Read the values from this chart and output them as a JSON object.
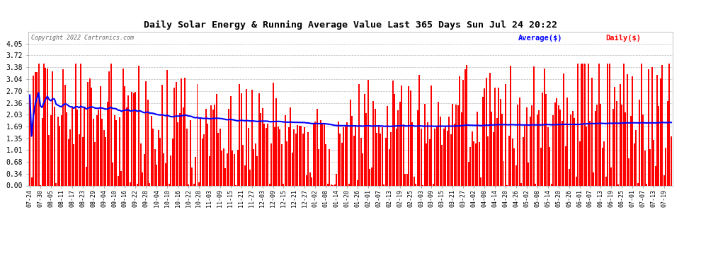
{
  "title": "Daily Solar Energy & Running Average Value Last 365 Days Sun Jul 24 20:22",
  "copyright": "Copyright 2022 Cartronics.com",
  "legend_avg": "Average($)",
  "legend_daily": "Daily($)",
  "ylim": [
    0.0,
    4.39
  ],
  "yticks": [
    0.0,
    0.34,
    0.68,
    1.01,
    1.35,
    1.69,
    2.03,
    2.36,
    2.7,
    3.04,
    3.38,
    3.72,
    4.05
  ],
  "bar_color": "#ff0000",
  "avg_color": "#0000ff",
  "bg_color": "#ffffff",
  "grid_color": "#bbbbbb",
  "title_color": "#000000",
  "copyright_color": "#666666",
  "avg_linewidth": 1.5,
  "bar_width": 0.8,
  "avg_value": 1.8,
  "xtick_labels": [
    "07-24",
    "07-30",
    "08-05",
    "08-11",
    "08-17",
    "08-23",
    "08-29",
    "09-04",
    "09-10",
    "09-16",
    "09-22",
    "09-28",
    "10-04",
    "10-10",
    "10-16",
    "10-22",
    "10-28",
    "11-03",
    "11-09",
    "11-15",
    "11-21",
    "11-27",
    "12-03",
    "12-09",
    "12-15",
    "12-21",
    "12-27",
    "01-02",
    "01-08",
    "01-14",
    "01-20",
    "01-26",
    "02-01",
    "02-07",
    "02-13",
    "02-19",
    "02-25",
    "03-03",
    "03-09",
    "03-15",
    "03-21",
    "03-27",
    "04-02",
    "04-08",
    "04-14",
    "04-20",
    "04-26",
    "05-02",
    "05-08",
    "05-14",
    "05-20",
    "05-26",
    "06-01",
    "06-07",
    "06-13",
    "06-19",
    "06-25",
    "07-01",
    "07-07",
    "07-13",
    "07-19"
  ]
}
